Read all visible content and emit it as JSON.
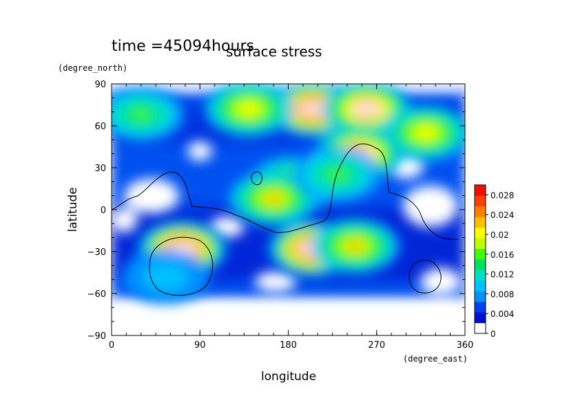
{
  "chart_data": {
    "type": "heatmap",
    "title": "surface stress",
    "subtitle": "time =45094hours",
    "xlabel": "longitude",
    "ylabel": "latitude",
    "x_units": "(degree_east)",
    "y_units": "(degree_north)",
    "xlim": [
      0,
      360
    ],
    "ylim": [
      -90,
      90
    ],
    "x_ticks": [
      "0",
      "90",
      "180",
      "270",
      "360"
    ],
    "y_ticks": [
      "90",
      "60",
      "30",
      "0",
      "−30",
      "−60",
      "−90"
    ],
    "colorbar": {
      "range": [
        0,
        0.03
      ],
      "tick_labels": [
        "0.028",
        "0.024",
        "0.02",
        "0.016",
        "0.012",
        "0.008",
        "0.004",
        "0"
      ],
      "colors": [
        "#ffffff",
        "#0010d0",
        "#0040f0",
        "#0090ff",
        "#00c0ff",
        "#00e0c0",
        "#00e060",
        "#40ff00",
        "#c0ff00",
        "#ffff00",
        "#ffc000",
        "#ff8000",
        "#ff4000",
        "#f01000"
      ]
    },
    "hotspots": [
      {
        "lon": 205,
        "lat": 72,
        "value": 0.03
      },
      {
        "lon": 260,
        "lat": 72,
        "value": 0.028
      },
      {
        "lon": 140,
        "lat": 72,
        "value": 0.02
      },
      {
        "lon": 30,
        "lat": 68,
        "value": 0.016
      },
      {
        "lon": 320,
        "lat": 55,
        "value": 0.02
      },
      {
        "lon": 252,
        "lat": 40,
        "value": 0.028
      },
      {
        "lon": 185,
        "lat": 18,
        "value": 0.022
      },
      {
        "lon": 165,
        "lat": 8,
        "value": 0.022
      },
      {
        "lon": 205,
        "lat": -28,
        "value": 0.03
      },
      {
        "lon": 248,
        "lat": -26,
        "value": 0.022
      },
      {
        "lon": 72,
        "lat": -28,
        "value": 0.03
      },
      {
        "lon": 55,
        "lat": -48,
        "value": 0.01
      },
      {
        "lon": 230,
        "lat": 25,
        "value": 0.016
      }
    ]
  }
}
